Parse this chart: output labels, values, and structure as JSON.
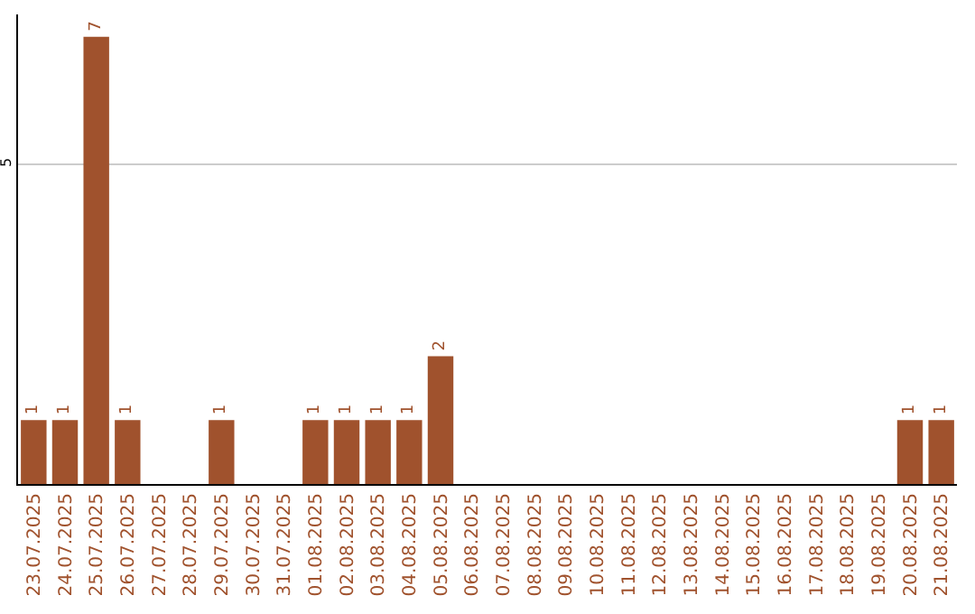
{
  "chart_data": {
    "type": "bar",
    "categories": [
      "23.07.2025",
      "24.07.2025",
      "25.07.2025",
      "26.07.2025",
      "27.07.2025",
      "28.07.2025",
      "29.07.2025",
      "30.07.2025",
      "31.07.2025",
      "01.08.2025",
      "02.08.2025",
      "03.08.2025",
      "04.08.2025",
      "05.08.2025",
      "06.08.2025",
      "07.08.2025",
      "08.08.2025",
      "09.08.2025",
      "10.08.2025",
      "11.08.2025",
      "12.08.2025",
      "13.08.2025",
      "14.08.2025",
      "15.08.2025",
      "16.08.2025",
      "17.08.2025",
      "18.08.2025",
      "19.08.2025",
      "20.08.2025",
      "21.08.2025"
    ],
    "values": [
      1,
      1,
      7,
      1,
      0,
      0,
      1,
      0,
      0,
      1,
      1,
      1,
      1,
      2,
      0,
      0,
      0,
      0,
      0,
      0,
      0,
      0,
      0,
      0,
      0,
      0,
      0,
      0,
      1,
      1
    ],
    "value_labels": [
      "1",
      "1",
      "7",
      "1",
      null,
      null,
      "1",
      null,
      null,
      "1",
      "1",
      "1",
      "1",
      "2",
      null,
      null,
      null,
      null,
      null,
      null,
      null,
      null,
      null,
      null,
      null,
      null,
      null,
      null,
      "1",
      "1"
    ],
    "color": "#a0522d",
    "ylim": [
      0,
      7.35
    ],
    "yticks": [
      5
    ],
    "grid": "y"
  }
}
